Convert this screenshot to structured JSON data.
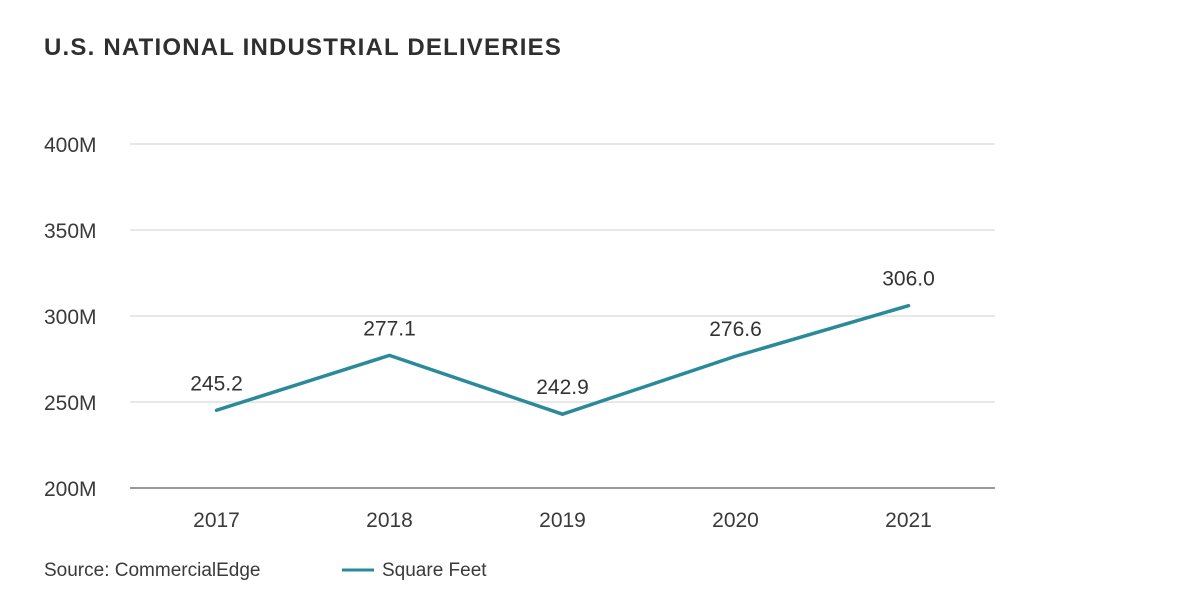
{
  "header": {
    "title": "U.S. NATIONAL INDUSTRIAL DELIVERIES"
  },
  "footer": {
    "source": "Source: CommercialEdge"
  },
  "colors": {
    "series": "#2a8a9a",
    "grid": "#d9d9d9",
    "axis": "#9a9a9a",
    "text": "#3a3a3a"
  },
  "chart_data": {
    "type": "line",
    "title": "U.S. NATIONAL INDUSTRIAL DELIVERIES",
    "xlabel": "",
    "ylabel": "",
    "categories": [
      "2017",
      "2018",
      "2019",
      "2020",
      "2021"
    ],
    "series": [
      {
        "name": "Square Feet",
        "values": [
          245.2,
          277.1,
          242.9,
          276.6,
          306.0
        ],
        "labels": [
          "245.2",
          "277.1",
          "242.9",
          "276.6",
          "306.0"
        ]
      }
    ],
    "ylim": [
      200,
      400
    ],
    "yticks": [
      200,
      250,
      300,
      350,
      400
    ],
    "ytick_labels": [
      "200M",
      "250M",
      "300M",
      "350M",
      "400M"
    ],
    "grid": true,
    "legend": "bottom"
  }
}
